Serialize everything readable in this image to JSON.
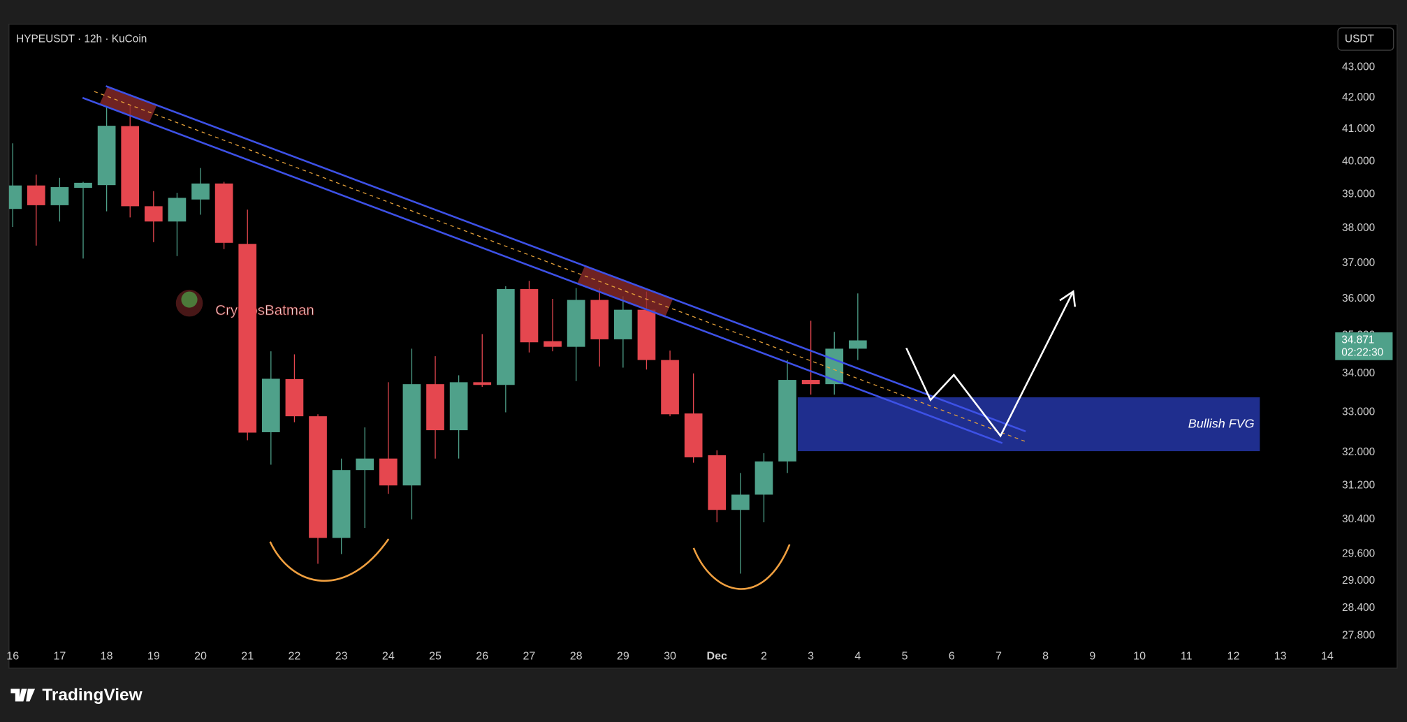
{
  "chart_data": {
    "type": "candlestick",
    "title": "HYPEUSDT · 12h · KuCoin",
    "currency": "USDT",
    "x": [
      0,
      0.5,
      1,
      1.5,
      2,
      2.5,
      3,
      3.5,
      4,
      4.5,
      5,
      5.5,
      6,
      6.5,
      7,
      7.5,
      8,
      8.5,
      9,
      9.5,
      10,
      10.5,
      11,
      11.5,
      12,
      12.5,
      13,
      13.5,
      14,
      14.5,
      15,
      15.5,
      16,
      16.5,
      17,
      17.5,
      18
    ],
    "open": [
      38.57,
      39.27,
      38.68,
      39.2,
      39.28,
      41.1,
      38.65,
      38.2,
      38.85,
      39.33,
      37.55,
      32.5,
      33.85,
      32.9,
      29.97,
      31.57,
      31.85,
      31.2,
      33.72,
      32.55,
      33.77,
      33.7,
      36.27,
      34.85,
      34.7,
      35.97,
      34.9,
      35.7,
      34.35,
      32.97,
      31.93,
      30.62,
      30.98,
      31.78,
      33.83,
      33.72,
      34.65
    ],
    "high": [
      40.56,
      39.6,
      39.5,
      39.38,
      41.7,
      41.75,
      39.1,
      39.05,
      39.8,
      39.38,
      38.55,
      34.58,
      34.5,
      32.95,
      31.85,
      32.62,
      33.77,
      34.65,
      34.45,
      33.95,
      35.04,
      36.35,
      36.5,
      36.0,
      36.3,
      36.3,
      36.07,
      36.2,
      34.6,
      34.0,
      32.05,
      31.5,
      31.98,
      34.35,
      35.4,
      35.1,
      36.15
    ],
    "low": [
      38.04,
      37.5,
      38.2,
      37.13,
      38.5,
      38.32,
      37.6,
      37.2,
      38.4,
      37.4,
      32.3,
      31.7,
      32.75,
      29.38,
      29.6,
      30.2,
      31.0,
      30.4,
      31.85,
      31.85,
      33.65,
      33.0,
      34.55,
      34.58,
      33.8,
      34.18,
      34.15,
      34.1,
      32.9,
      31.75,
      30.33,
      29.16,
      30.33,
      31.5,
      33.45,
      33.45,
      34.35
    ],
    "close": [
      39.27,
      38.68,
      39.22,
      39.35,
      41.11,
      38.65,
      38.2,
      38.9,
      39.33,
      37.58,
      32.49,
      33.86,
      32.9,
      29.97,
      31.57,
      31.85,
      31.2,
      33.72,
      32.55,
      33.77,
      33.7,
      36.27,
      34.82,
      34.7,
      35.97,
      34.9,
      35.7,
      34.35,
      32.95,
      31.88,
      30.62,
      30.98,
      31.78,
      33.83,
      33.72,
      34.65,
      34.871
    ],
    "up_color": "#4fa18a",
    "down_color": "#e5474f",
    "log_scale": true,
    "grid": false,
    "xlim": [
      -0.08,
      28.15
    ],
    "ylim": [
      27.59,
      44.44
    ],
    "xticks": [
      {
        "value": 0,
        "label": "16"
      },
      {
        "value": 1,
        "label": "17"
      },
      {
        "value": 2,
        "label": "18"
      },
      {
        "value": 3,
        "label": "19"
      },
      {
        "value": 4,
        "label": "20"
      },
      {
        "value": 5,
        "label": "21"
      },
      {
        "value": 6,
        "label": "22"
      },
      {
        "value": 7,
        "label": "23"
      },
      {
        "value": 8,
        "label": "24"
      },
      {
        "value": 9,
        "label": "25"
      },
      {
        "value": 10,
        "label": "26"
      },
      {
        "value": 11,
        "label": "27"
      },
      {
        "value": 12,
        "label": "28"
      },
      {
        "value": 13,
        "label": "29"
      },
      {
        "value": 14,
        "label": "30"
      },
      {
        "value": 15,
        "label": "Dec"
      },
      {
        "value": 16,
        "label": "2"
      },
      {
        "value": 17,
        "label": "3"
      },
      {
        "value": 18,
        "label": "4"
      },
      {
        "value": 19,
        "label": "5"
      },
      {
        "value": 20,
        "label": "6"
      },
      {
        "value": 21,
        "label": "7"
      },
      {
        "value": 22,
        "label": "8"
      },
      {
        "value": 23,
        "label": "9"
      },
      {
        "value": 24,
        "label": "10"
      },
      {
        "value": 25,
        "label": "11"
      },
      {
        "value": 26,
        "label": "12"
      },
      {
        "value": 27,
        "label": "13"
      },
      {
        "value": 28,
        "label": "14"
      }
    ],
    "yticks": [
      {
        "value": 43,
        "label": "43.000"
      },
      {
        "value": 42,
        "label": "42.000"
      },
      {
        "value": 41,
        "label": "41.000"
      },
      {
        "value": 40,
        "label": "40.000"
      },
      {
        "value": 39,
        "label": "39.000"
      },
      {
        "value": 38,
        "label": "38.000"
      },
      {
        "value": 37,
        "label": "37.000"
      },
      {
        "value": 36,
        "label": "36.000"
      },
      {
        "value": 35,
        "label": "35.000"
      },
      {
        "value": 34,
        "label": "34.000"
      },
      {
        "value": 33,
        "label": "33.000"
      },
      {
        "value": 32,
        "label": "32.000"
      },
      {
        "value": 31.2,
        "label": "31.200"
      },
      {
        "value": 30.4,
        "label": "30.400"
      },
      {
        "value": 29.6,
        "label": "29.600"
      },
      {
        "value": 29,
        "label": "29.000"
      },
      {
        "value": 28.4,
        "label": "28.400"
      },
      {
        "value": 27.8,
        "label": "27.800"
      }
    ],
    "last_price": 34.871,
    "countdown": "02:22:30",
    "fvg_label": "Bullish FVG",
    "watermark": "CryptosBatman",
    "brand": "TradingView"
  }
}
